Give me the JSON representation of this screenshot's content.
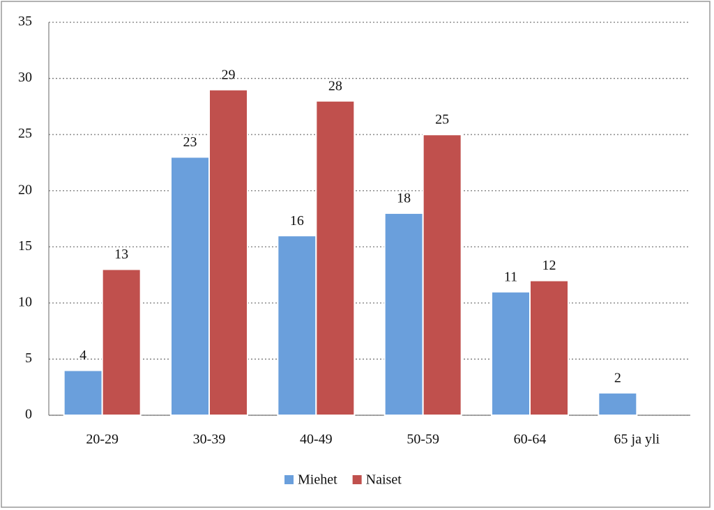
{
  "chart_data": {
    "type": "bar",
    "categories": [
      "20-29",
      "30-39",
      "40-49",
      "50-59",
      "60-64",
      "65 ja yli"
    ],
    "series": [
      {
        "name": "Miehet",
        "color": "#6a9fdc",
        "values": [
          4,
          23,
          16,
          18,
          11,
          2
        ]
      },
      {
        "name": "Naiset",
        "color": "#c0504d",
        "values": [
          13,
          29,
          28,
          25,
          12,
          null
        ]
      }
    ],
    "ylim": [
      0,
      35
    ],
    "yticks": [
      0,
      5,
      10,
      15,
      20,
      25,
      30,
      35
    ],
    "grid": true,
    "legend": "bottom"
  }
}
